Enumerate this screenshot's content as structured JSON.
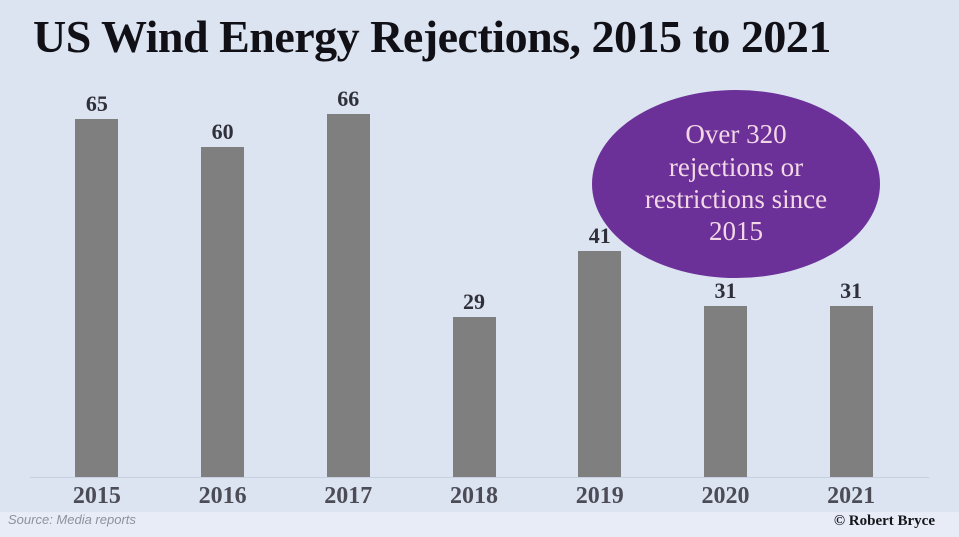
{
  "title": "US Wind Energy Rejections, 2015 to 2021",
  "annotation": {
    "text": "Over 320\nrejections or\nrestrictions since\n2015",
    "fill_color": "#6c3099",
    "text_color": "#f2d8e6"
  },
  "footer": {
    "source": "Source: Media reports",
    "credit": "© Robert Bryce"
  },
  "colors": {
    "background": "#dce4f2",
    "bar": "#7f7f7f",
    "value_label": "#30303a",
    "year_label": "#4c4c56",
    "axis_line": "#c6d0e2"
  },
  "chart_data": {
    "type": "bar",
    "title": "US Wind Energy Rejections, 2015 to 2021",
    "categories": [
      "2015",
      "2016",
      "2017",
      "2018",
      "2019",
      "2020",
      "2021"
    ],
    "values": [
      65,
      60,
      66,
      29,
      41,
      31,
      31
    ],
    "xlabel": "",
    "ylabel": "",
    "ylim": [
      0,
      66
    ],
    "grid": false,
    "legend": false,
    "data_labels": true,
    "annotation": "Over 320 rejections or restrictions since 2015"
  }
}
